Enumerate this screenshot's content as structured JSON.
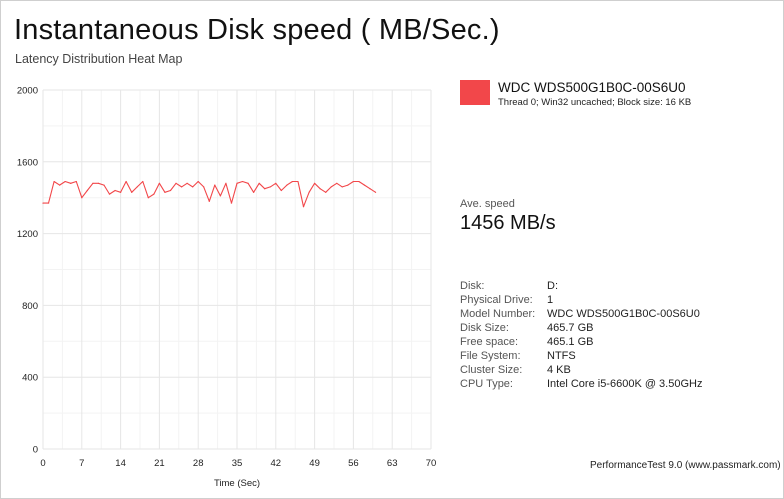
{
  "title": "Instantaneous Disk speed ( MB/Sec.)",
  "subtitle": "Latency Distribution Heat Map",
  "legend": {
    "name": "WDC WDS500G1B0C-00S6U0",
    "description": "Thread 0; Win32 uncached; Block size: 16 KB",
    "color": "#f2474a"
  },
  "average": {
    "label": "Ave. speed",
    "value": "1456 MB/s"
  },
  "info": [
    {
      "key": "Disk:",
      "value": "D:"
    },
    {
      "key": "Physical Drive:",
      "value": "1"
    },
    {
      "key": "Model Number:",
      "value": "WDC WDS500G1B0C-00S6U0"
    },
    {
      "key": "Disk Size:",
      "value": "465.7 GB"
    },
    {
      "key": "Free space:",
      "value": "465.1 GB"
    },
    {
      "key": "File System:",
      "value": "NTFS"
    },
    {
      "key": "Cluster Size:",
      "value": "4 KB"
    },
    {
      "key": "CPU Type:",
      "value": "Intel Core i5-6600K @ 3.50GHz"
    }
  ],
  "footer": "PerformanceTest 9.0 (www.passmark.com)",
  "chart_data": {
    "type": "line",
    "xlabel": "Time (Sec)",
    "ylabel": "",
    "xlim": [
      0,
      70
    ],
    "ylim": [
      0,
      2000
    ],
    "xticks": [
      0,
      7,
      14,
      21,
      28,
      35,
      42,
      49,
      56,
      63,
      70
    ],
    "yticks": [
      0,
      400,
      800,
      1200,
      1600,
      2000
    ],
    "grid": true,
    "series": [
      {
        "name": "WDC WDS500G1B0C-00S6U0",
        "color": "#f2474a",
        "x": [
          0,
          1,
          2,
          3,
          4,
          5,
          6,
          7,
          8,
          9,
          10,
          11,
          12,
          13,
          14,
          15,
          16,
          17,
          18,
          19,
          20,
          21,
          22,
          23,
          24,
          25,
          26,
          27,
          28,
          29,
          30,
          31,
          32,
          33,
          34,
          35,
          36,
          37,
          38,
          39,
          40,
          41,
          42,
          43,
          44,
          45,
          46,
          47,
          48,
          49,
          50,
          51,
          52,
          53,
          54,
          55,
          56,
          57,
          58,
          59,
          60
        ],
        "y": [
          1370,
          1370,
          1490,
          1470,
          1490,
          1480,
          1490,
          1400,
          1440,
          1480,
          1480,
          1470,
          1420,
          1440,
          1430,
          1490,
          1430,
          1460,
          1490,
          1400,
          1420,
          1480,
          1430,
          1440,
          1480,
          1460,
          1480,
          1460,
          1490,
          1460,
          1380,
          1470,
          1410,
          1480,
          1370,
          1480,
          1490,
          1480,
          1430,
          1480,
          1450,
          1460,
          1480,
          1440,
          1470,
          1490,
          1490,
          1350,
          1430,
          1480,
          1450,
          1430,
          1460,
          1480,
          1460,
          1470,
          1490,
          1490,
          1470,
          1450,
          1430
        ]
      }
    ]
  }
}
